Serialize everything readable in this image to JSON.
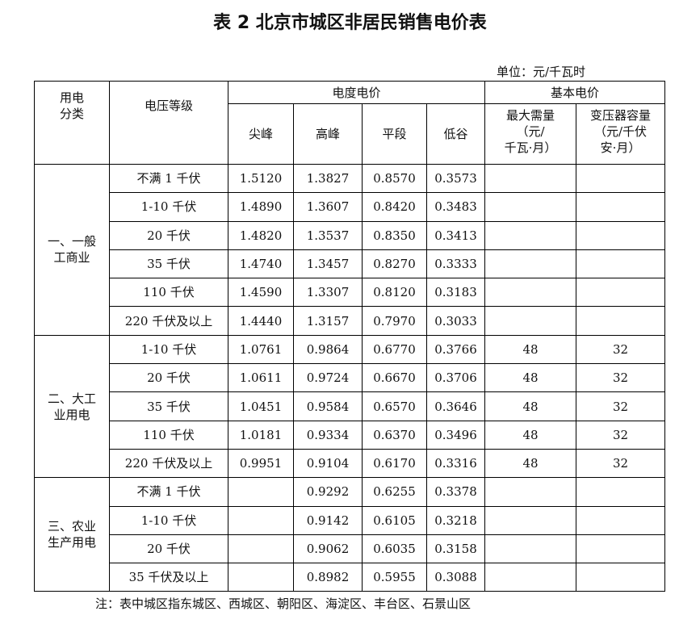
{
  "title": "表 2 北京市城区非居民销售电价表",
  "unit": "单位：元/千瓦时",
  "headers": {
    "category": "用电\n分类",
    "voltage": "电压等级",
    "energy_price": "电度电价",
    "peak_sharp": "尖峰",
    "peak": "高峰",
    "flat": "平段",
    "valley": "低谷",
    "basic_price": "基本电价",
    "max_demand": "最大需量\n（元/\n千瓦·月）",
    "transformer": "变压器容量\n（元/千伏\n安·月）"
  },
  "groups": [
    {
      "category": "一、一般\n工商业",
      "rows": [
        {
          "voltage": "不满 1 千伏",
          "sharp": "1.5120",
          "peak": "1.3827",
          "flat": "0.8570",
          "valley": "0.3573",
          "demand": "",
          "capacity": ""
        },
        {
          "voltage": "1-10 千伏",
          "sharp": "1.4890",
          "peak": "1.3607",
          "flat": "0.8420",
          "valley": "0.3483",
          "demand": "",
          "capacity": ""
        },
        {
          "voltage": "20 千伏",
          "sharp": "1.4820",
          "peak": "1.3537",
          "flat": "0.8350",
          "valley": "0.3413",
          "demand": "",
          "capacity": ""
        },
        {
          "voltage": "35 千伏",
          "sharp": "1.4740",
          "peak": "1.3457",
          "flat": "0.8270",
          "valley": "0.3333",
          "demand": "",
          "capacity": ""
        },
        {
          "voltage": "110 千伏",
          "sharp": "1.4590",
          "peak": "1.3307",
          "flat": "0.8120",
          "valley": "0.3183",
          "demand": "",
          "capacity": ""
        },
        {
          "voltage": "220 千伏及以上",
          "sharp": "1.4440",
          "peak": "1.3157",
          "flat": "0.7970",
          "valley": "0.3033",
          "demand": "",
          "capacity": ""
        }
      ]
    },
    {
      "category": "二、大工\n业用电",
      "rows": [
        {
          "voltage": "1-10 千伏",
          "sharp": "1.0761",
          "peak": "0.9864",
          "flat": "0.6770",
          "valley": "0.3766",
          "demand": "48",
          "capacity": "32"
        },
        {
          "voltage": "20 千伏",
          "sharp": "1.0611",
          "peak": "0.9724",
          "flat": "0.6670",
          "valley": "0.3706",
          "demand": "48",
          "capacity": "32"
        },
        {
          "voltage": "35 千伏",
          "sharp": "1.0451",
          "peak": "0.9584",
          "flat": "0.6570",
          "valley": "0.3646",
          "demand": "48",
          "capacity": "32"
        },
        {
          "voltage": "110 千伏",
          "sharp": "1.0181",
          "peak": "0.9334",
          "flat": "0.6370",
          "valley": "0.3496",
          "demand": "48",
          "capacity": "32"
        },
        {
          "voltage": "220 千伏及以上",
          "sharp": "0.9951",
          "peak": "0.9104",
          "flat": "0.6170",
          "valley": "0.3316",
          "demand": "48",
          "capacity": "32"
        }
      ]
    },
    {
      "category": "三、农业\n生产用电",
      "rows": [
        {
          "voltage": "不满 1 千伏",
          "sharp": "",
          "peak": "0.9292",
          "flat": "0.6255",
          "valley": "0.3378",
          "demand": "",
          "capacity": ""
        },
        {
          "voltage": "1-10 千伏",
          "sharp": "",
          "peak": "0.9142",
          "flat": "0.6105",
          "valley": "0.3218",
          "demand": "",
          "capacity": ""
        },
        {
          "voltage": "20 千伏",
          "sharp": "",
          "peak": "0.9062",
          "flat": "0.6035",
          "valley": "0.3158",
          "demand": "",
          "capacity": ""
        },
        {
          "voltage": "35 千伏及以上",
          "sharp": "",
          "peak": "0.8982",
          "flat": "0.5955",
          "valley": "0.3088",
          "demand": "",
          "capacity": ""
        }
      ]
    }
  ],
  "note": "注：表中城区指东城区、西城区、朝阳区、海淀区、丰台区、石景山区"
}
